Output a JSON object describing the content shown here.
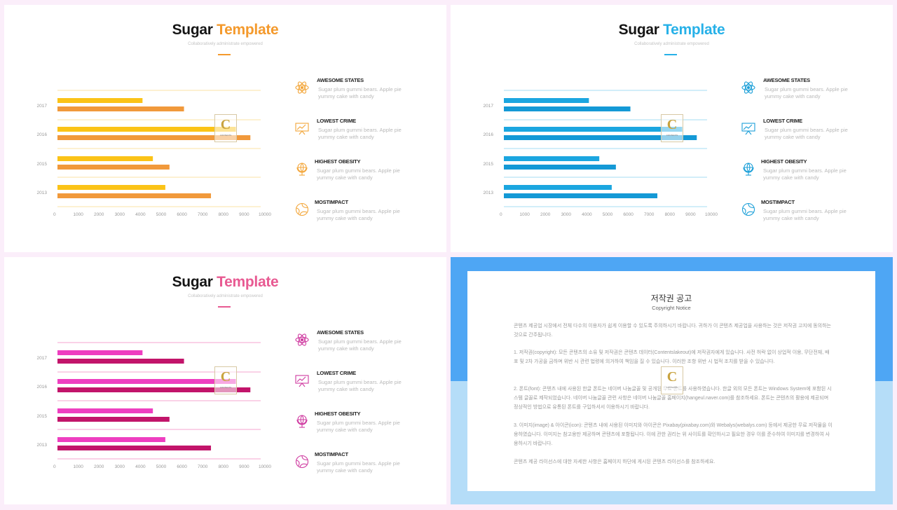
{
  "slides": [
    {
      "title_main": "Sugar",
      "title_accent": "Template",
      "subtitle": "Collaboratively administrate empowered",
      "accent": "#f49a2d",
      "bar_light": "#fbc317",
      "bar_dark": "#f1993b",
      "gridline": "#fbe3a6",
      "icon_color": "#f3a63a"
    },
    {
      "title_main": "Sugar",
      "title_accent": "Template",
      "subtitle": "Collaboratively administrate empowered",
      "accent": "#27b1e8",
      "bar_light": "#1ba6e0",
      "bar_dark": "#1499d6",
      "gridline": "#a6dcf3",
      "icon_color": "#1b9fd8"
    },
    {
      "title_main": "Sugar",
      "title_accent": "Template",
      "subtitle": "Collaboratively administrate empowered",
      "accent": "#e85a92",
      "bar_light": "#ee3ec0",
      "bar_dark": "#c2146a",
      "gridline": "#f4a6cf",
      "icon_color": "#cf3aa0"
    }
  ],
  "features": [
    {
      "icon": "atom-icon",
      "title": "AWESOME STATES",
      "desc": "Sugar plum gummi bears. Apple pie yummy cake with candy"
    },
    {
      "icon": "presentation-board-icon",
      "title": "LOWEST CRIME",
      "desc": "Sugar plum gummi bears. Apple pie yummy cake with candy"
    },
    {
      "icon": "globe-stand-icon",
      "title": "HIGHEST OBESITY",
      "desc": "Sugar plum gummi bears. Apple pie yummy cake with candy"
    },
    {
      "icon": "globe-network-icon",
      "title": "MOSTIMPACT",
      "desc": "Sugar plum gummi bears. Apple pie yummy cake with candy"
    }
  ],
  "logo": {
    "letter": "C",
    "text": "CONTENTS"
  },
  "chart_data": {
    "type": "bar",
    "orientation": "horizontal",
    "categories": [
      "2017",
      "2016",
      "2015",
      "2013"
    ],
    "series": [
      {
        "values": [
          4100,
          8600,
          4600,
          5200
        ]
      },
      {
        "values": [
          6100,
          9300,
          5400,
          7400
        ]
      }
    ],
    "xticks": [
      "0",
      "1000",
      "2000",
      "3000",
      "4000",
      "5000",
      "6000",
      "7000",
      "8000",
      "9000",
      "10000"
    ],
    "xlim": [
      0,
      10000
    ],
    "grid": true
  },
  "notice": {
    "title": "저작권 공고",
    "subtitle": "Copyright Notice",
    "paragraphs": [
      "콘텐츠 제공업 시장에서 전체 다수의 이용자가 쉽게 이용할 수 있도록 주의하시기 바랍니다. 귀하가 이 콘텐츠 제공업을 사용하는 것은 저작권 고지에 동의하는 것으로 간주됩니다.",
      "1. 저작권(copyright): 모든 콘텐츠의 소유 및 저작권은 콘텐츠 데이터(Contentslakeout)에 저작권자에게 있습니다. 사전 허락 없이 상업적 이용, 무단전재, 배포 및 2차 가공을 금하며 위반 시 관련 법령에 의거하여 책임을 질 수 있습니다. 이러한 조항 위반 시 법적 조치를 받을 수 있습니다.",
      "2. 폰트(font): 콘텐츠 내에 사용된 한글 폰트는 네이버 나눔글꼴 및 공개된 무료 폰트를 사용하였습니다. 한글 외의 모든 폰트는 Windows System에 포함된 시스템 글꼴로 제작되었습니다. 네이버 나눔글꼴 관련 사항은 네이버 나눔글꼴 홈페이지(hangeul.naver.com)를 참조하세요. 폰트는 콘텐츠의 활용에 제공되며 정상적인 방법으로 유통된 폰트를 구입하셔서 이용하시기 바랍니다.",
      "3. 이미지(image) & 아이콘(icon): 콘텐츠 내에 사용된 이미지와 아이콘은 Pixabay(pixabay.com)와 Webalys(webalys.com) 등에서 제공한 무료 저작물을 이용하였습니다. 이미지는 참고용만 제공하며 콘텐츠에 포함됩니다. 이에 관한 권리는 위 사이트를 확인하시고 필요한 경우 이를 준수하여 이미지를 변경하여 사용하시기 바랍니다.",
      "콘텐츠 제공 라이선스에 대한 자세한 사항은 홈페이지 하단에 게시된 콘텐츠 라이선스를 참조하세요."
    ]
  }
}
